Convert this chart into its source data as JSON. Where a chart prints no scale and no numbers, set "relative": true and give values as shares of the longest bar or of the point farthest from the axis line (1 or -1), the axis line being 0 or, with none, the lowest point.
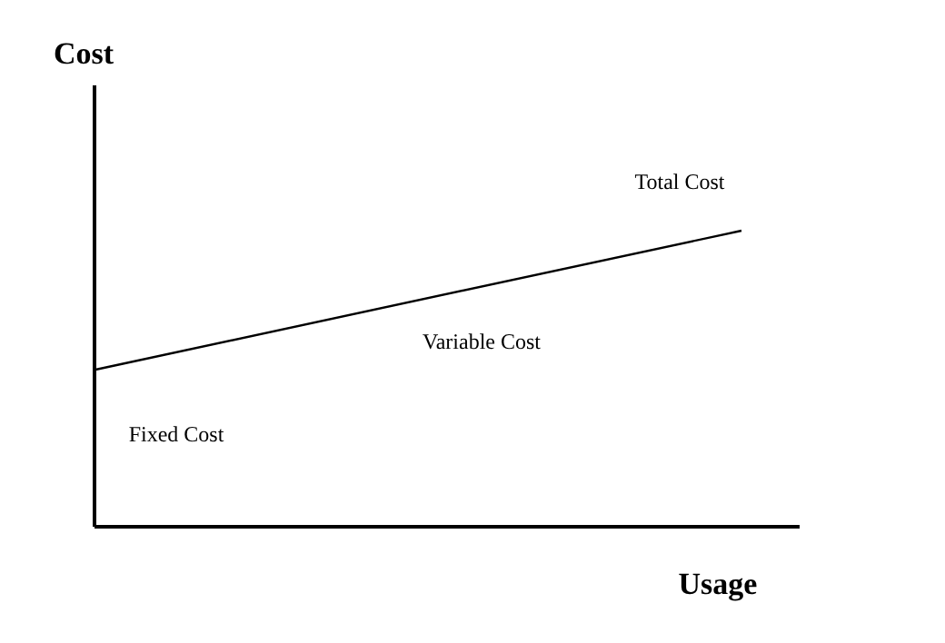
{
  "chart_data": {
    "type": "line",
    "relative": true,
    "xlabel": "Usage",
    "categories": [
      null,
      null
    ],
    "series": [
      {
        "color": "#000000",
        "values": [
          0.53,
          1
        ]
      }
    ],
    "annotations": [
      "Total Cost",
      "Variable Cost",
      "Fixed Cost",
      "Cost"
    ],
    "marker": "none",
    "line_style": "solid"
  }
}
